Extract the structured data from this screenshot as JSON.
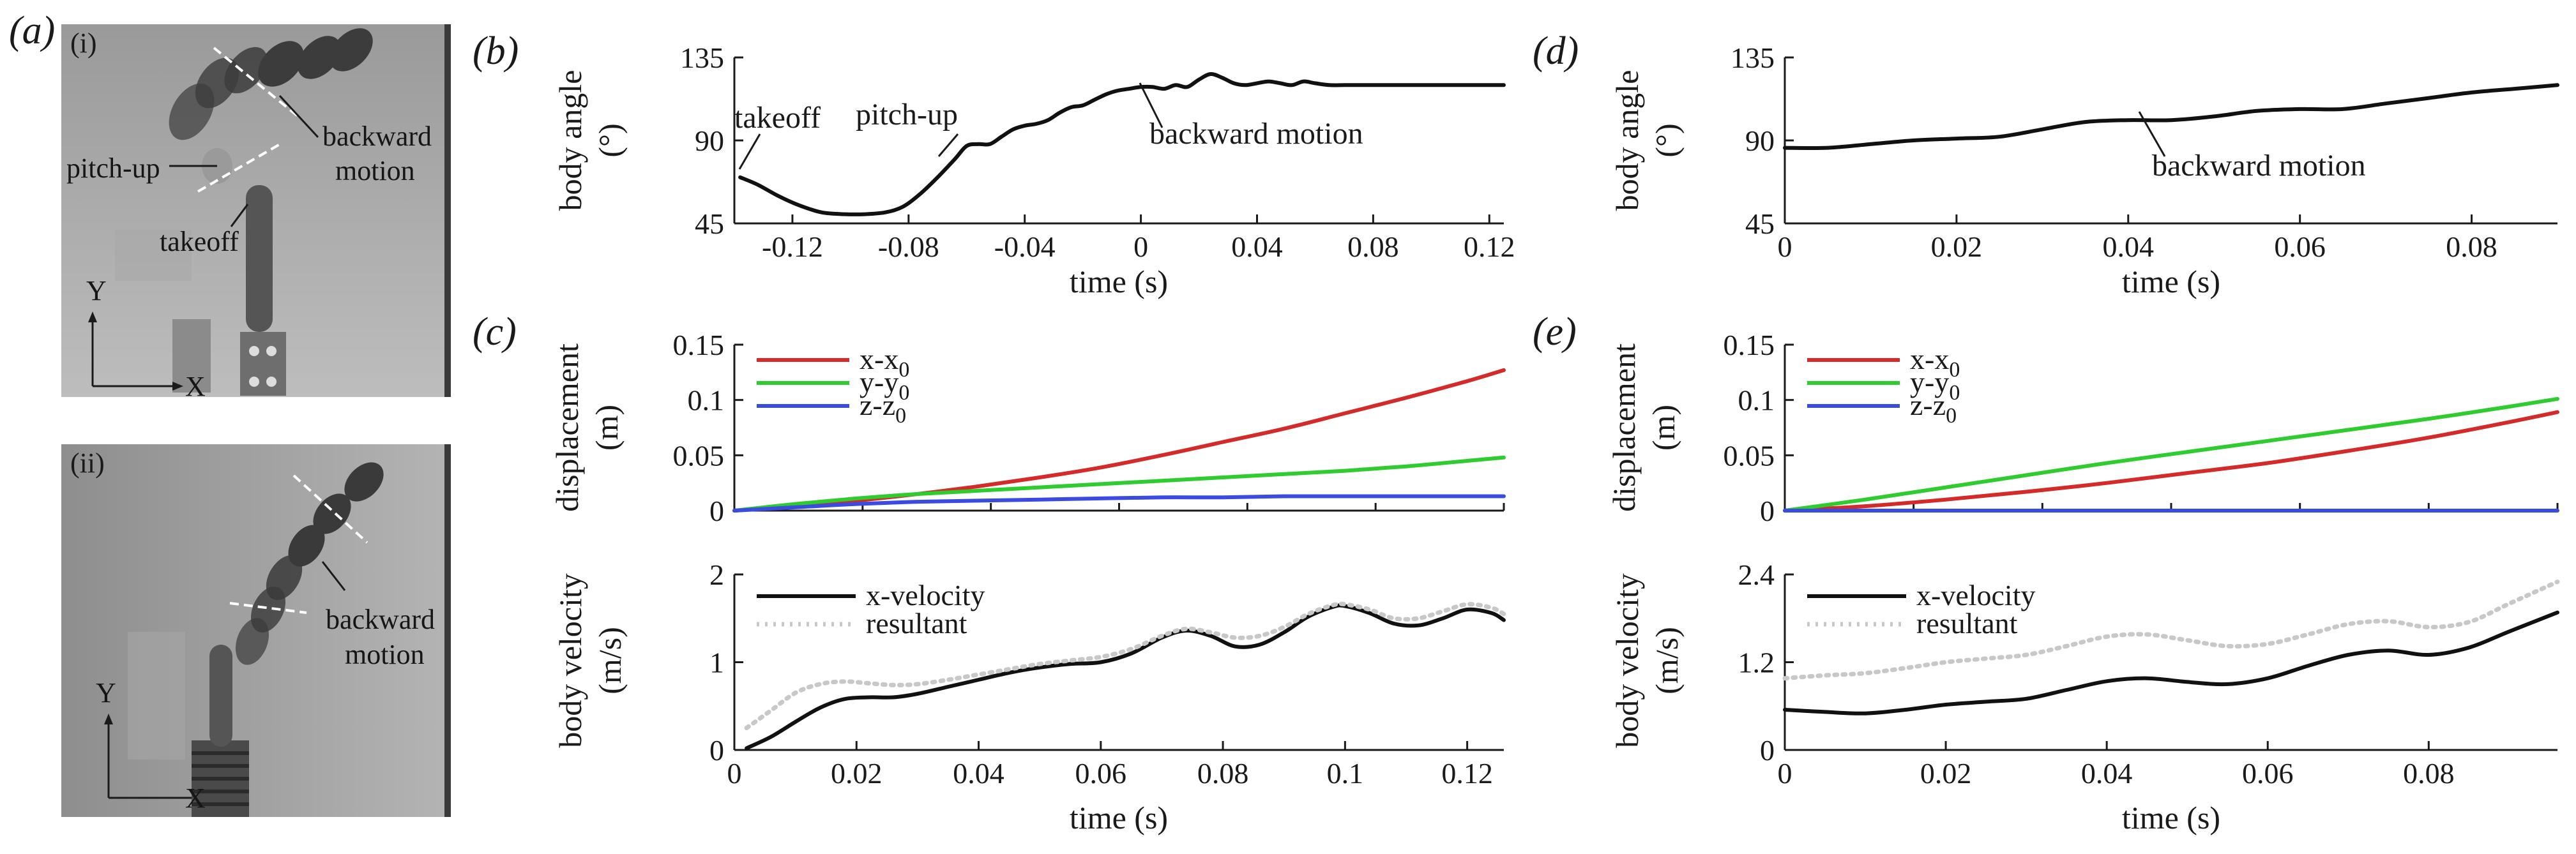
{
  "panel_labels": {
    "a": "(a)",
    "b": "(b)",
    "c": "(c)",
    "d": "(d)",
    "e": "(e)"
  },
  "photos": [
    {
      "roman": "(i)",
      "annotations": [
        "pitch-up",
        "backward",
        "motion",
        "takeoff"
      ],
      "axis_y": "Y",
      "axis_x": "X"
    },
    {
      "roman": "(ii)",
      "annotations": [
        "backward",
        "motion"
      ],
      "axis_y": "Y",
      "axis_x": "X"
    }
  ],
  "chart_data": [
    {
      "id": "b",
      "type": "line",
      "xlabel": "time (s)",
      "ylabel": "body angle",
      "yunit": "(°)",
      "xlim": [
        -0.14,
        0.125
      ],
      "ylim": [
        45,
        135
      ],
      "xticks": [
        -0.12,
        -0.08,
        -0.04,
        0,
        0.04,
        0.08,
        0.12
      ],
      "xtick_labels": [
        "-0.12",
        "-0.08",
        "-0.04",
        "0",
        "0.04",
        "0.08",
        "0.12"
      ],
      "yticks": [
        45,
        90,
        135
      ],
      "ytick_labels": [
        "45",
        "90",
        "135"
      ],
      "annotations": [
        "takeoff",
        "pitch-up",
        "backward motion"
      ],
      "series": [
        {
          "name": "body angle",
          "color": "#111111",
          "x": [
            -0.138,
            -0.132,
            -0.125,
            -0.118,
            -0.11,
            -0.102,
            -0.095,
            -0.088,
            -0.082,
            -0.076,
            -0.07,
            -0.064,
            -0.06,
            -0.056,
            -0.052,
            -0.048,
            -0.044,
            -0.04,
            -0.036,
            -0.032,
            -0.028,
            -0.024,
            -0.02,
            -0.016,
            -0.012,
            -0.008,
            -0.004,
            0,
            0.004,
            0.008,
            0.012,
            0.016,
            0.02,
            0.024,
            0.028,
            0.032,
            0.036,
            0.04,
            0.044,
            0.048,
            0.052,
            0.056,
            0.06,
            0.065,
            0.07,
            0.075,
            0.08,
            0.09,
            0.1,
            0.11,
            0.12,
            0.125
          ],
          "y": [
            70,
            66,
            60,
            55,
            51,
            50,
            50,
            51,
            54,
            61,
            70,
            80,
            87,
            88,
            88,
            92,
            96,
            98,
            99,
            101,
            105,
            108,
            109,
            112,
            115,
            117,
            118,
            119,
            119,
            118,
            120,
            119,
            123,
            126,
            124,
            121,
            120,
            121,
            122,
            121,
            120,
            122,
            121,
            120,
            120,
            120,
            120,
            120,
            120,
            120,
            120,
            120
          ]
        }
      ]
    },
    {
      "id": "c-top",
      "type": "line",
      "xlabel": "",
      "ylabel": "displacement",
      "yunit": "(m)",
      "xlim": [
        0,
        0.126
      ],
      "ylim": [
        0,
        0.15
      ],
      "yticks": [
        0,
        0.05,
        0.1,
        0.15
      ],
      "ytick_labels": [
        "0",
        "0.05",
        "0.1",
        "0.15"
      ],
      "legend": [
        "x-x",
        "y-y",
        "z-z"
      ],
      "legend_sub": "0",
      "series": [
        {
          "name": "x-x0",
          "color": "#d42a2a",
          "x": [
            0,
            0.01,
            0.02,
            0.03,
            0.04,
            0.05,
            0.06,
            0.07,
            0.08,
            0.09,
            0.1,
            0.11,
            0.12,
            0.126
          ],
          "y": [
            0,
            0.004,
            0.009,
            0.015,
            0.022,
            0.03,
            0.039,
            0.05,
            0.062,
            0.074,
            0.088,
            0.102,
            0.117,
            0.127
          ]
        },
        {
          "name": "y-y0",
          "color": "#2ecc2e",
          "x": [
            0,
            0.01,
            0.02,
            0.03,
            0.04,
            0.05,
            0.06,
            0.07,
            0.08,
            0.09,
            0.1,
            0.11,
            0.12,
            0.126
          ],
          "y": [
            0,
            0.006,
            0.011,
            0.015,
            0.018,
            0.021,
            0.024,
            0.027,
            0.03,
            0.033,
            0.036,
            0.04,
            0.045,
            0.048
          ]
        },
        {
          "name": "z-z0",
          "color": "#3a4be0",
          "x": [
            0,
            0.01,
            0.02,
            0.03,
            0.04,
            0.05,
            0.06,
            0.07,
            0.08,
            0.09,
            0.1,
            0.11,
            0.12,
            0.126
          ],
          "y": [
            0,
            0.003,
            0.006,
            0.008,
            0.009,
            0.01,
            0.011,
            0.012,
            0.012,
            0.013,
            0.013,
            0.013,
            0.013,
            0.013
          ]
        }
      ]
    },
    {
      "id": "c-bottom",
      "type": "line",
      "xlabel": "time (s)",
      "ylabel": "body velocity",
      "yunit": "(m/s)",
      "xlim": [
        0,
        0.126
      ],
      "ylim": [
        0,
        2
      ],
      "xticks": [
        0,
        0.02,
        0.04,
        0.06,
        0.08,
        0.1,
        0.12
      ],
      "xtick_labels": [
        "0",
        "0.02",
        "0.04",
        "0.06",
        "0.08",
        "0.1",
        "0.12"
      ],
      "yticks": [
        0,
        1,
        2
      ],
      "ytick_labels": [
        "0",
        "1",
        "2"
      ],
      "legend": [
        "x-velocity",
        "resultant"
      ],
      "series": [
        {
          "name": "x-velocity",
          "color": "#111111",
          "x": [
            0.002,
            0.006,
            0.01,
            0.014,
            0.018,
            0.022,
            0.026,
            0.03,
            0.035,
            0.04,
            0.045,
            0.05,
            0.055,
            0.06,
            0.065,
            0.07,
            0.074,
            0.078,
            0.082,
            0.086,
            0.09,
            0.094,
            0.098,
            0.1,
            0.104,
            0.108,
            0.112,
            0.116,
            0.12,
            0.124,
            0.126
          ],
          "y": [
            0.02,
            0.15,
            0.32,
            0.48,
            0.58,
            0.6,
            0.6,
            0.64,
            0.72,
            0.8,
            0.88,
            0.94,
            0.98,
            1.0,
            1.1,
            1.28,
            1.36,
            1.3,
            1.18,
            1.2,
            1.34,
            1.52,
            1.63,
            1.64,
            1.56,
            1.44,
            1.42,
            1.5,
            1.6,
            1.56,
            1.48
          ]
        },
        {
          "name": "resultant",
          "color": "#c8c8c8",
          "x": [
            0.002,
            0.006,
            0.01,
            0.014,
            0.018,
            0.022,
            0.026,
            0.03,
            0.035,
            0.04,
            0.045,
            0.05,
            0.055,
            0.06,
            0.065,
            0.07,
            0.074,
            0.078,
            0.082,
            0.086,
            0.09,
            0.094,
            0.098,
            0.1,
            0.104,
            0.108,
            0.112,
            0.116,
            0.12,
            0.124,
            0.126
          ],
          "y": [
            0.25,
            0.45,
            0.65,
            0.75,
            0.78,
            0.76,
            0.74,
            0.75,
            0.8,
            0.86,
            0.92,
            0.98,
            1.02,
            1.06,
            1.15,
            1.3,
            1.38,
            1.34,
            1.28,
            1.3,
            1.4,
            1.55,
            1.65,
            1.66,
            1.6,
            1.5,
            1.5,
            1.58,
            1.66,
            1.62,
            1.55
          ]
        }
      ]
    },
    {
      "id": "d",
      "type": "line",
      "xlabel": "time (s)",
      "ylabel": "body angle",
      "yunit": "(°)",
      "xlim": [
        0,
        0.09
      ],
      "ylim": [
        45,
        135
      ],
      "xticks": [
        0,
        0.02,
        0.04,
        0.06,
        0.08
      ],
      "xtick_labels": [
        "0",
        "0.02",
        "0.04",
        "0.06",
        "0.08"
      ],
      "yticks": [
        45,
        90,
        135
      ],
      "ytick_labels": [
        "45",
        "90",
        "135"
      ],
      "annotations": [
        "backward motion"
      ],
      "series": [
        {
          "name": "body angle",
          "color": "#111111",
          "x": [
            0,
            0.005,
            0.01,
            0.015,
            0.02,
            0.025,
            0.03,
            0.035,
            0.04,
            0.045,
            0.05,
            0.055,
            0.06,
            0.065,
            0.07,
            0.075,
            0.08,
            0.085,
            0.09
          ],
          "y": [
            86,
            86,
            88,
            90,
            91,
            92,
            96,
            100,
            101,
            101,
            103,
            106,
            107,
            107,
            110,
            113,
            116,
            118,
            120
          ]
        }
      ]
    },
    {
      "id": "e-top",
      "type": "line",
      "xlabel": "",
      "ylabel": "displacement",
      "yunit": "(m)",
      "xlim": [
        0,
        0.096
      ],
      "ylim": [
        0,
        0.15
      ],
      "yticks": [
        0,
        0.05,
        0.1,
        0.15
      ],
      "ytick_labels": [
        "0",
        "0.05",
        "0.1",
        "0.15"
      ],
      "legend": [
        "x-x",
        "y-y",
        "z-z"
      ],
      "legend_sub": "0",
      "series": [
        {
          "name": "x-x0",
          "color": "#d42a2a",
          "x": [
            0,
            0.01,
            0.02,
            0.03,
            0.04,
            0.05,
            0.06,
            0.07,
            0.08,
            0.09,
            0.096
          ],
          "y": [
            0,
            0.004,
            0.01,
            0.017,
            0.025,
            0.034,
            0.043,
            0.054,
            0.066,
            0.08,
            0.089
          ]
        },
        {
          "name": "y-y0",
          "color": "#2ecc2e",
          "x": [
            0,
            0.01,
            0.02,
            0.03,
            0.04,
            0.05,
            0.06,
            0.07,
            0.08,
            0.09,
            0.096
          ],
          "y": [
            0,
            0.01,
            0.021,
            0.032,
            0.043,
            0.053,
            0.063,
            0.073,
            0.083,
            0.094,
            0.101
          ]
        },
        {
          "name": "z-z0",
          "color": "#3a4be0",
          "x": [
            0,
            0.02,
            0.04,
            0.06,
            0.08,
            0.096
          ],
          "y": [
            0,
            0,
            0,
            0,
            0,
            0
          ]
        }
      ]
    },
    {
      "id": "e-bottom",
      "type": "line",
      "xlabel": "time (s)",
      "ylabel": "body velocity",
      "yunit": "(m/s)",
      "xlim": [
        0,
        0.096
      ],
      "ylim": [
        0,
        2.4
      ],
      "xticks": [
        0,
        0.02,
        0.04,
        0.06,
        0.08
      ],
      "xtick_labels": [
        "0",
        "0.02",
        "0.04",
        "0.06",
        "0.08"
      ],
      "yticks": [
        0,
        1.2,
        2.4
      ],
      "ytick_labels": [
        "0",
        "1.2",
        "2.4"
      ],
      "legend": [
        "x-velocity",
        "resultant"
      ],
      "series": [
        {
          "name": "x-velocity",
          "color": "#111111",
          "x": [
            0,
            0.005,
            0.01,
            0.015,
            0.02,
            0.025,
            0.03,
            0.035,
            0.04,
            0.045,
            0.05,
            0.055,
            0.06,
            0.065,
            0.07,
            0.075,
            0.08,
            0.085,
            0.09,
            0.096
          ],
          "y": [
            0.55,
            0.52,
            0.5,
            0.55,
            0.62,
            0.66,
            0.7,
            0.82,
            0.94,
            0.98,
            0.93,
            0.9,
            0.98,
            1.15,
            1.3,
            1.36,
            1.3,
            1.4,
            1.62,
            1.88
          ]
        },
        {
          "name": "resultant",
          "color": "#c8c8c8",
          "x": [
            0,
            0.005,
            0.01,
            0.015,
            0.02,
            0.025,
            0.03,
            0.035,
            0.04,
            0.045,
            0.05,
            0.055,
            0.06,
            0.065,
            0.07,
            0.075,
            0.08,
            0.085,
            0.09,
            0.096
          ],
          "y": [
            0.98,
            1.02,
            1.05,
            1.12,
            1.2,
            1.25,
            1.3,
            1.42,
            1.55,
            1.58,
            1.5,
            1.42,
            1.45,
            1.58,
            1.72,
            1.76,
            1.68,
            1.75,
            2.0,
            2.3
          ]
        }
      ]
    }
  ]
}
